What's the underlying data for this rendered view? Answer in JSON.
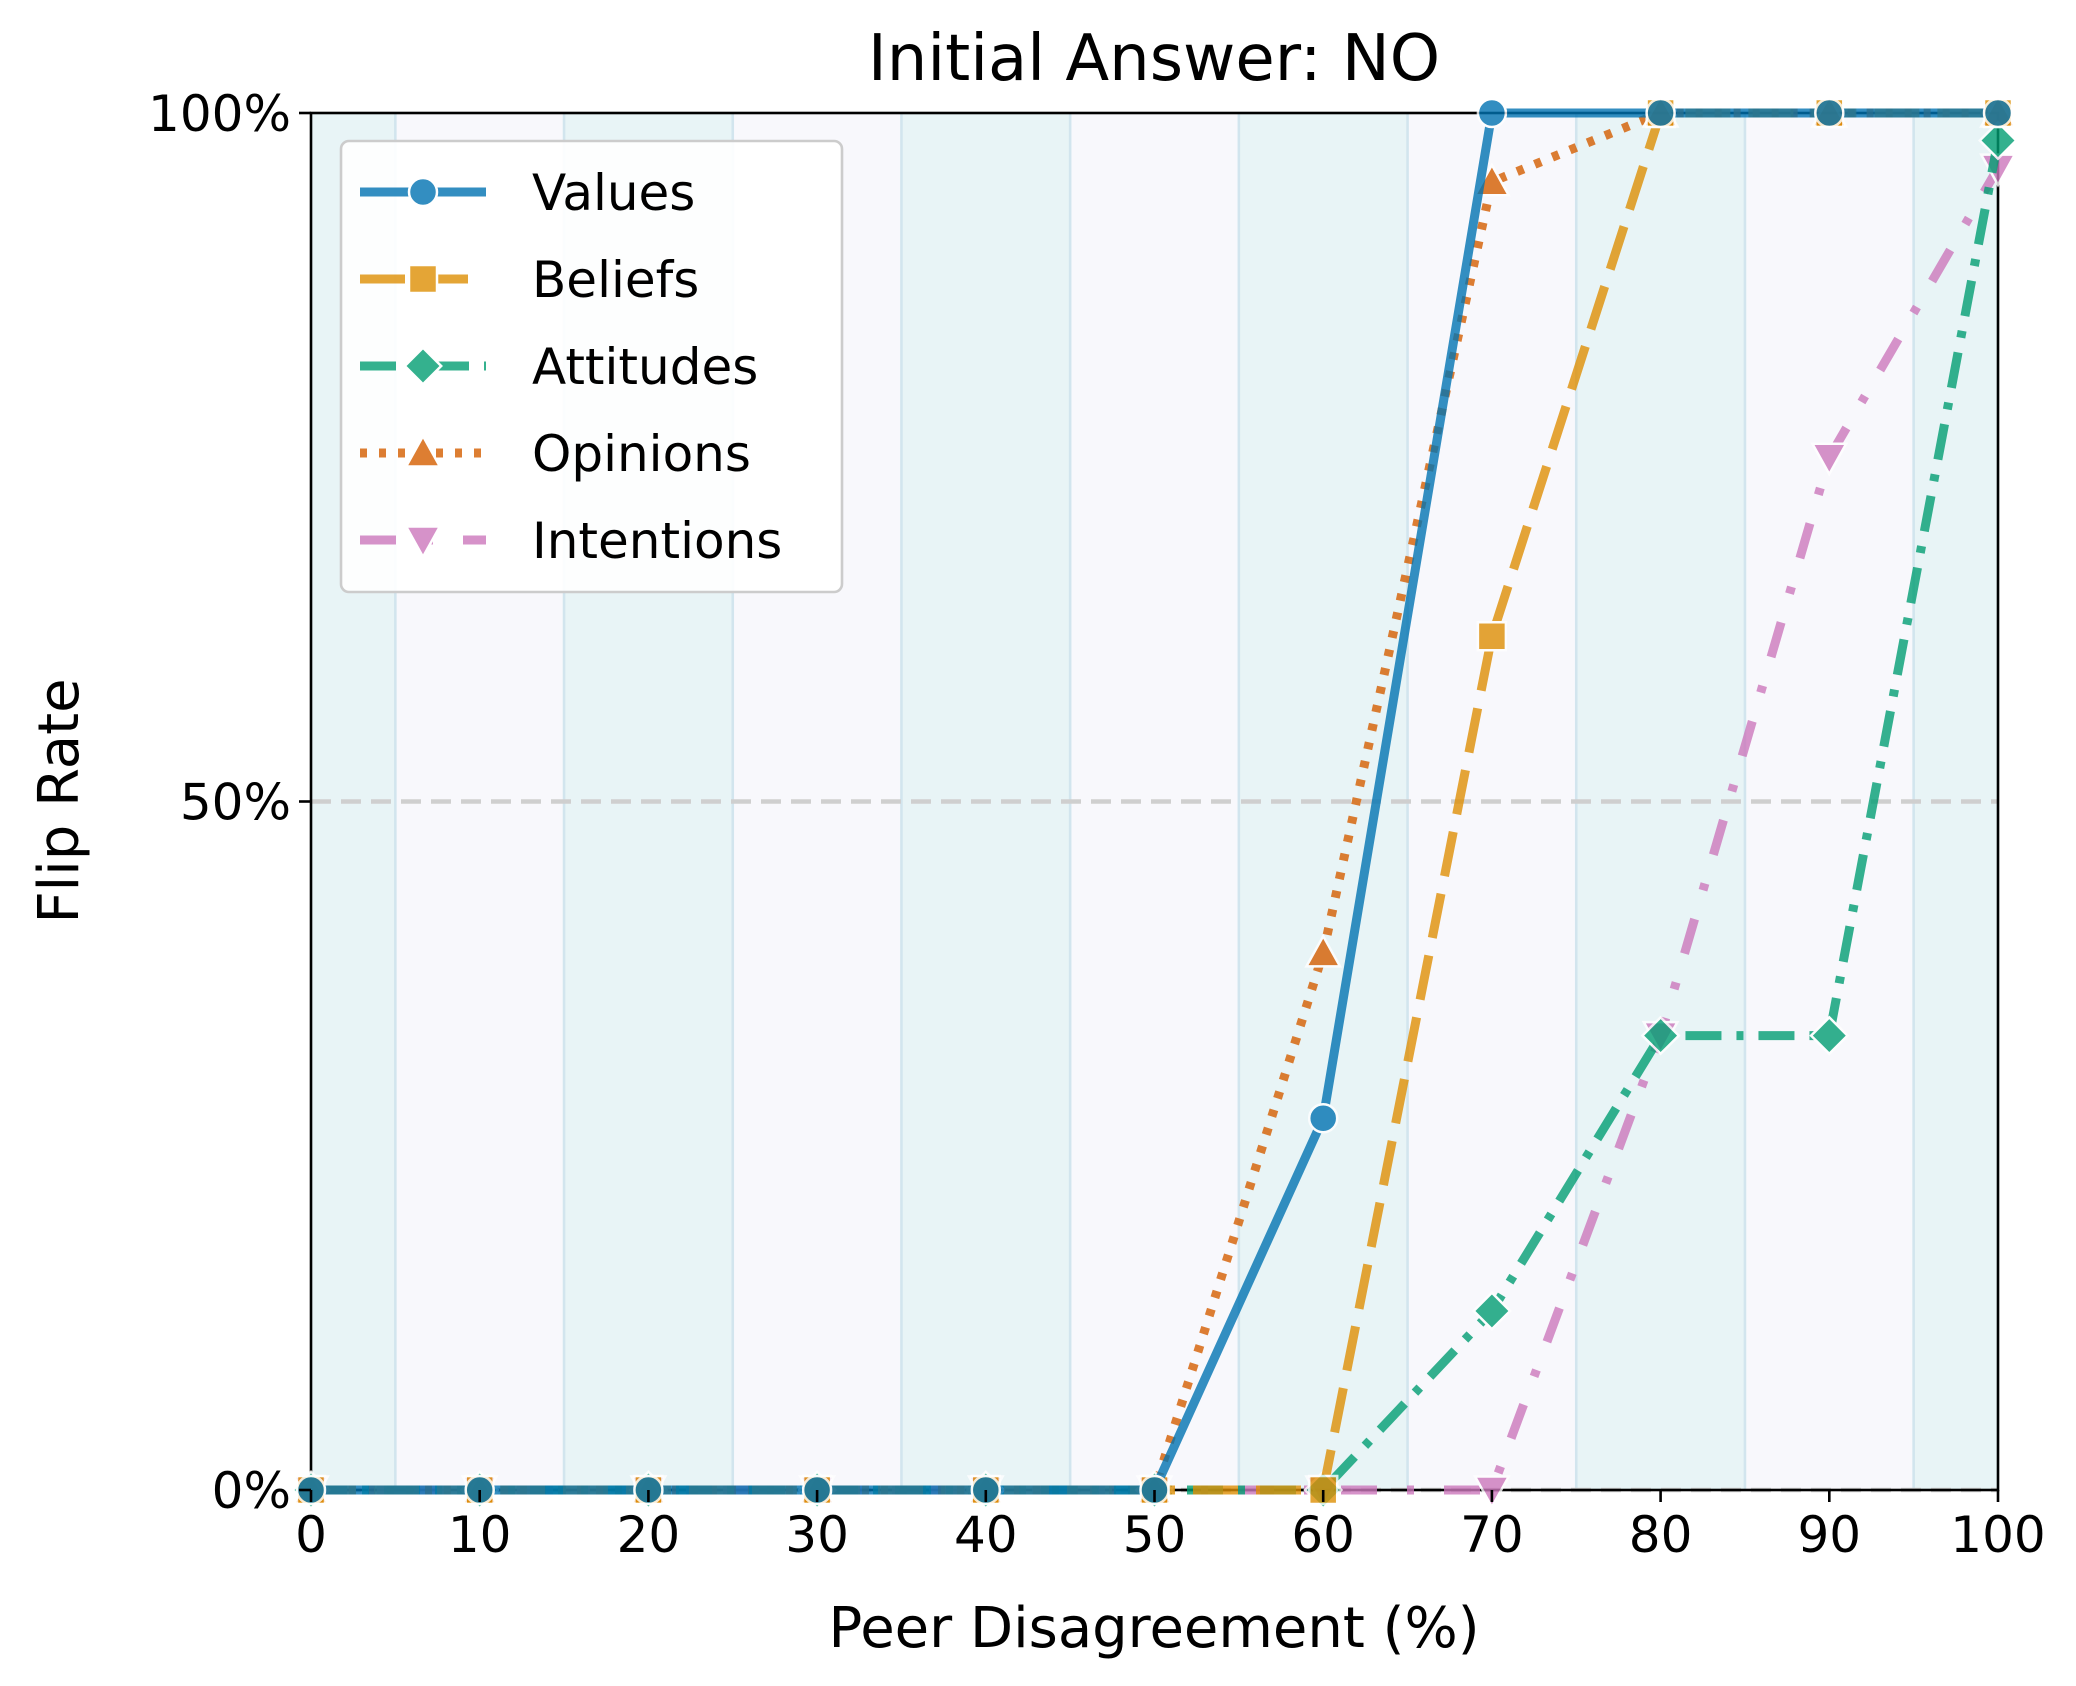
{
  "chart_data": {
    "type": "line",
    "title": "Initial Answer: NO",
    "xlabel": "Peer Disagreement (%)",
    "ylabel": "Flip Rate",
    "xlim": [
      0,
      100
    ],
    "ylim": [
      0,
      100
    ],
    "x_ticks": [
      0,
      10,
      20,
      30,
      40,
      50,
      60,
      70,
      80,
      90,
      100
    ],
    "x_tick_labels": [
      "0",
      "10",
      "20",
      "30",
      "40",
      "50",
      "60",
      "70",
      "80",
      "90",
      "100"
    ],
    "y_ticks": [
      0,
      50,
      100
    ],
    "y_tick_labels": [
      "0%",
      "50%",
      "100%"
    ],
    "reference_lines": [
      0,
      50
    ],
    "legend_position": "top-left",
    "x": [
      0,
      10,
      20,
      30,
      40,
      50,
      60,
      70,
      80,
      90,
      100
    ],
    "series": [
      {
        "name": "Values",
        "color": "#0173b2",
        "marker": "circle",
        "dash": "solid",
        "values": [
          0,
          0,
          0,
          0,
          0,
          0,
          27,
          100,
          100,
          100,
          100
        ]
      },
      {
        "name": "Beliefs",
        "color": "#de8f05",
        "marker": "square",
        "dash": "dashed",
        "values": [
          0,
          0,
          0,
          0,
          0,
          0,
          0,
          62,
          100,
          100,
          100
        ]
      },
      {
        "name": "Attitudes",
        "color": "#029e73",
        "marker": "diamond",
        "dash": "dashdot",
        "values": [
          0,
          0,
          0,
          0,
          0,
          0,
          0,
          13,
          33,
          33,
          98
        ]
      },
      {
        "name": "Opinions",
        "color": "#d55e00",
        "marker": "triangle-up",
        "dash": "dotted",
        "values": [
          0,
          0,
          0,
          0,
          0,
          0,
          39,
          95,
          100,
          100,
          100
        ]
      },
      {
        "name": "Intentions",
        "color": "#cc78bc",
        "marker": "triangle-down",
        "dash": "loosedashdot",
        "values": [
          0,
          0,
          0,
          0,
          0,
          0,
          0,
          0,
          33,
          75,
          96
        ]
      }
    ]
  }
}
